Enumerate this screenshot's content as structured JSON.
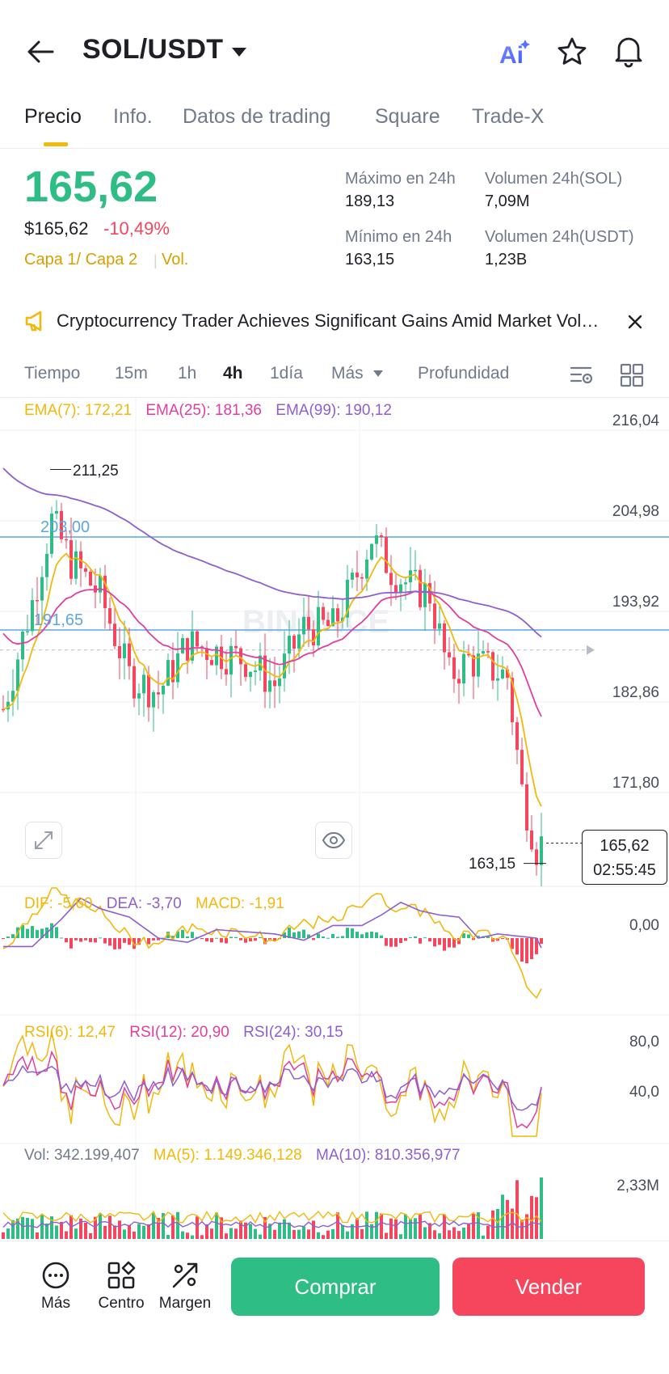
{
  "header": {
    "pair": "SOL/USDT",
    "ai_label": "Ai"
  },
  "tabs": [
    {
      "label": "Precio",
      "active": true
    },
    {
      "label": "Info."
    },
    {
      "label": "Datos de trading"
    },
    {
      "label": "Square"
    },
    {
      "label": "Trade-X"
    }
  ],
  "price": {
    "last": "165,62",
    "usd": "$165,62",
    "change": "-10,49%",
    "layer": "Capa 1/ Capa 2",
    "vol": "Vol."
  },
  "stats": {
    "high_label": "Máximo en 24h",
    "high_value": "189,13",
    "low_label": "Mínimo en 24h",
    "low_value": "163,15",
    "vol_sol_label": "Volumen 24h(SOL)",
    "vol_sol_value": "7,09M",
    "vol_usdt_label": "Volumen 24h(USDT)",
    "vol_usdt_value": "1,23B"
  },
  "news": {
    "text": "Cryptocurrency Trader Achieves Significant Gains Amid Market Volatility"
  },
  "toolbar": {
    "tiempo": "Tiempo",
    "i15m": "15m",
    "i1h": "1h",
    "i4h": "4h",
    "i1d": "1día",
    "mas": "Más",
    "profundidad": "Profundidad"
  },
  "chart": {
    "ema7": "EMA(7): 172,21",
    "ema25": "EMA(25): 181,36",
    "ema99": "EMA(99): 190,12",
    "axis": [
      "216,04",
      "204,98",
      "193,92",
      "182,86",
      "171,80"
    ],
    "high_marker": "211,25",
    "low_marker": "163,15",
    "line1": "203,00",
    "line2": "191,65",
    "last_price": "165,62",
    "countdown": "02:55:45",
    "watermark": "BINANCE",
    "colors": {
      "up": "#2ebd85",
      "down": "#f6465d",
      "ema7": "#f0b90b",
      "ema25": "#e03fa0",
      "ema99": "#8e5fd0",
      "hline": "#5ea6e0"
    }
  },
  "macd": {
    "dif": "DIF: -5,60",
    "dea": "DEA: -3,70",
    "macd": "MACD: -1,91",
    "axis": "0,00"
  },
  "rsi": {
    "rsi6": "RSI(6): 12,47",
    "rsi12": "RSI(12): 20,90",
    "rsi24": "RSI(24): 30,15",
    "axis_top": "80,0",
    "axis_mid": "40,0"
  },
  "volume": {
    "vol": "Vol: 342.199,407",
    "ma5": "MA(5): 1.149.346,128",
    "ma10": "MA(10): 810.356,977",
    "axis": "2,33M"
  },
  "bottom": {
    "mas": "Más",
    "centro": "Centro",
    "margen": "Margen",
    "buy": "Comprar",
    "sell": "Vender"
  }
}
